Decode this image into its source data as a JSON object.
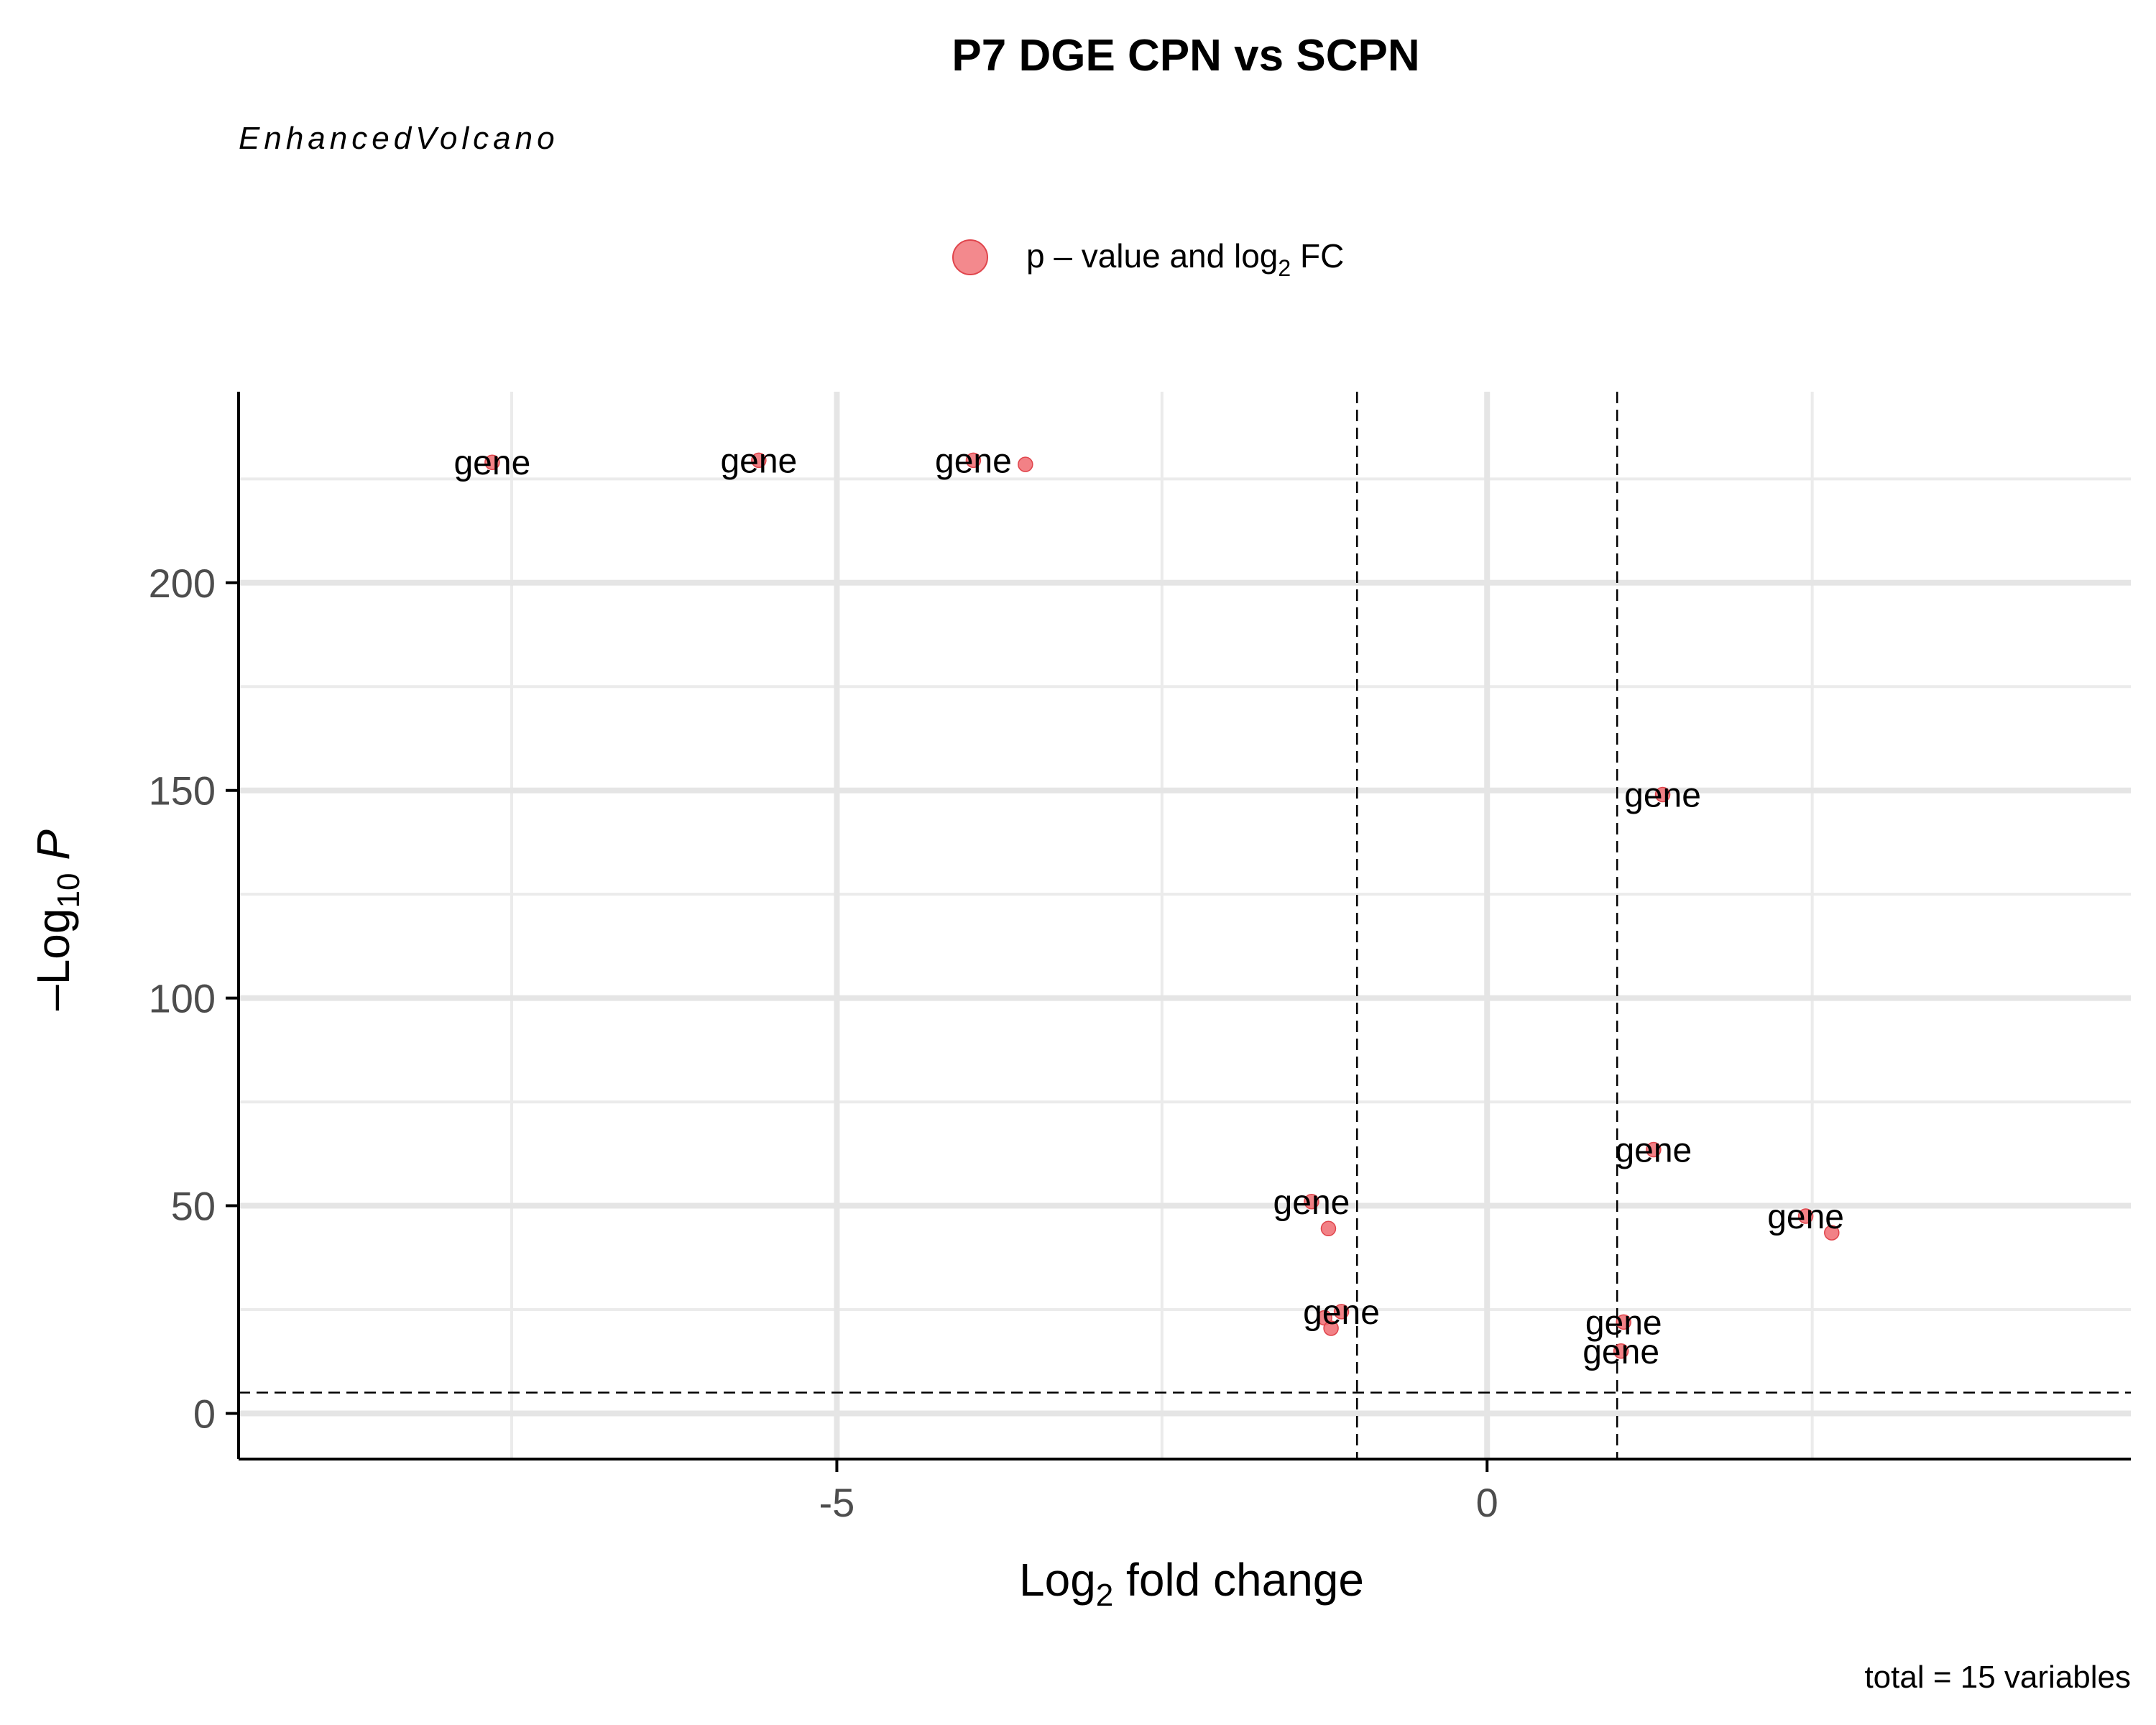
{
  "chart_data": {
    "type": "scatter",
    "title": "P7 DGE CPN vs SCPN",
    "subtitle": "EnhancedVolcano",
    "legend": {
      "label_prefix": "p – value and log",
      "label_sub": "2",
      "label_suffix": " FC",
      "placement": "top",
      "color": "#f06b71"
    },
    "xlabel_main": "Log",
    "xlabel_sub": "2",
    "xlabel_rest": " fold change",
    "ylabel_prefix": "–Log",
    "ylabel_sub": "10",
    "ylabel_rest": " P",
    "caption": "total = 15 variables",
    "xlim": [
      -9.6,
      4.95
    ],
    "ylim": [
      -11,
      246
    ],
    "x_major_ticks": [
      -5,
      0
    ],
    "x_tick_labels": [
      "-5",
      "0"
    ],
    "x_minor_grid": [
      -7.5,
      -2.5,
      2.5
    ],
    "y_major_ticks": [
      0,
      50,
      100,
      150,
      200
    ],
    "y_tick_labels": [
      "0",
      "50",
      "100",
      "150",
      "200"
    ],
    "y_minor_grid": [
      25,
      75,
      125,
      175,
      225
    ],
    "cutoffs": {
      "x": [
        -1,
        1
      ],
      "y": 5
    },
    "grid": true,
    "point_color": "#f06b71",
    "points": [
      {
        "x": -7.65,
        "y": 229,
        "label": "gene"
      },
      {
        "x": -5.6,
        "y": 229.5,
        "label": "gene"
      },
      {
        "x": -3.95,
        "y": 229.5,
        "label": "gene"
      },
      {
        "x": -3.55,
        "y": 228.5,
        "label": null
      },
      {
        "x": 1.35,
        "y": 149,
        "label": "gene"
      },
      {
        "x": 1.28,
        "y": 63.5,
        "label": "gene"
      },
      {
        "x": 2.45,
        "y": 47.5,
        "label": "gene"
      },
      {
        "x": 2.65,
        "y": 43.5,
        "label": null
      },
      {
        "x": -1.35,
        "y": 51,
        "label": "gene"
      },
      {
        "x": -1.22,
        "y": 44.5,
        "label": null
      },
      {
        "x": -1.12,
        "y": 24.5,
        "label": "gene"
      },
      {
        "x": -1.25,
        "y": 23,
        "label": null
      },
      {
        "x": -1.2,
        "y": 20.5,
        "label": null
      },
      {
        "x": 1.05,
        "y": 22,
        "label": "gene"
      },
      {
        "x": 1.03,
        "y": 15,
        "label": "gene"
      }
    ]
  }
}
